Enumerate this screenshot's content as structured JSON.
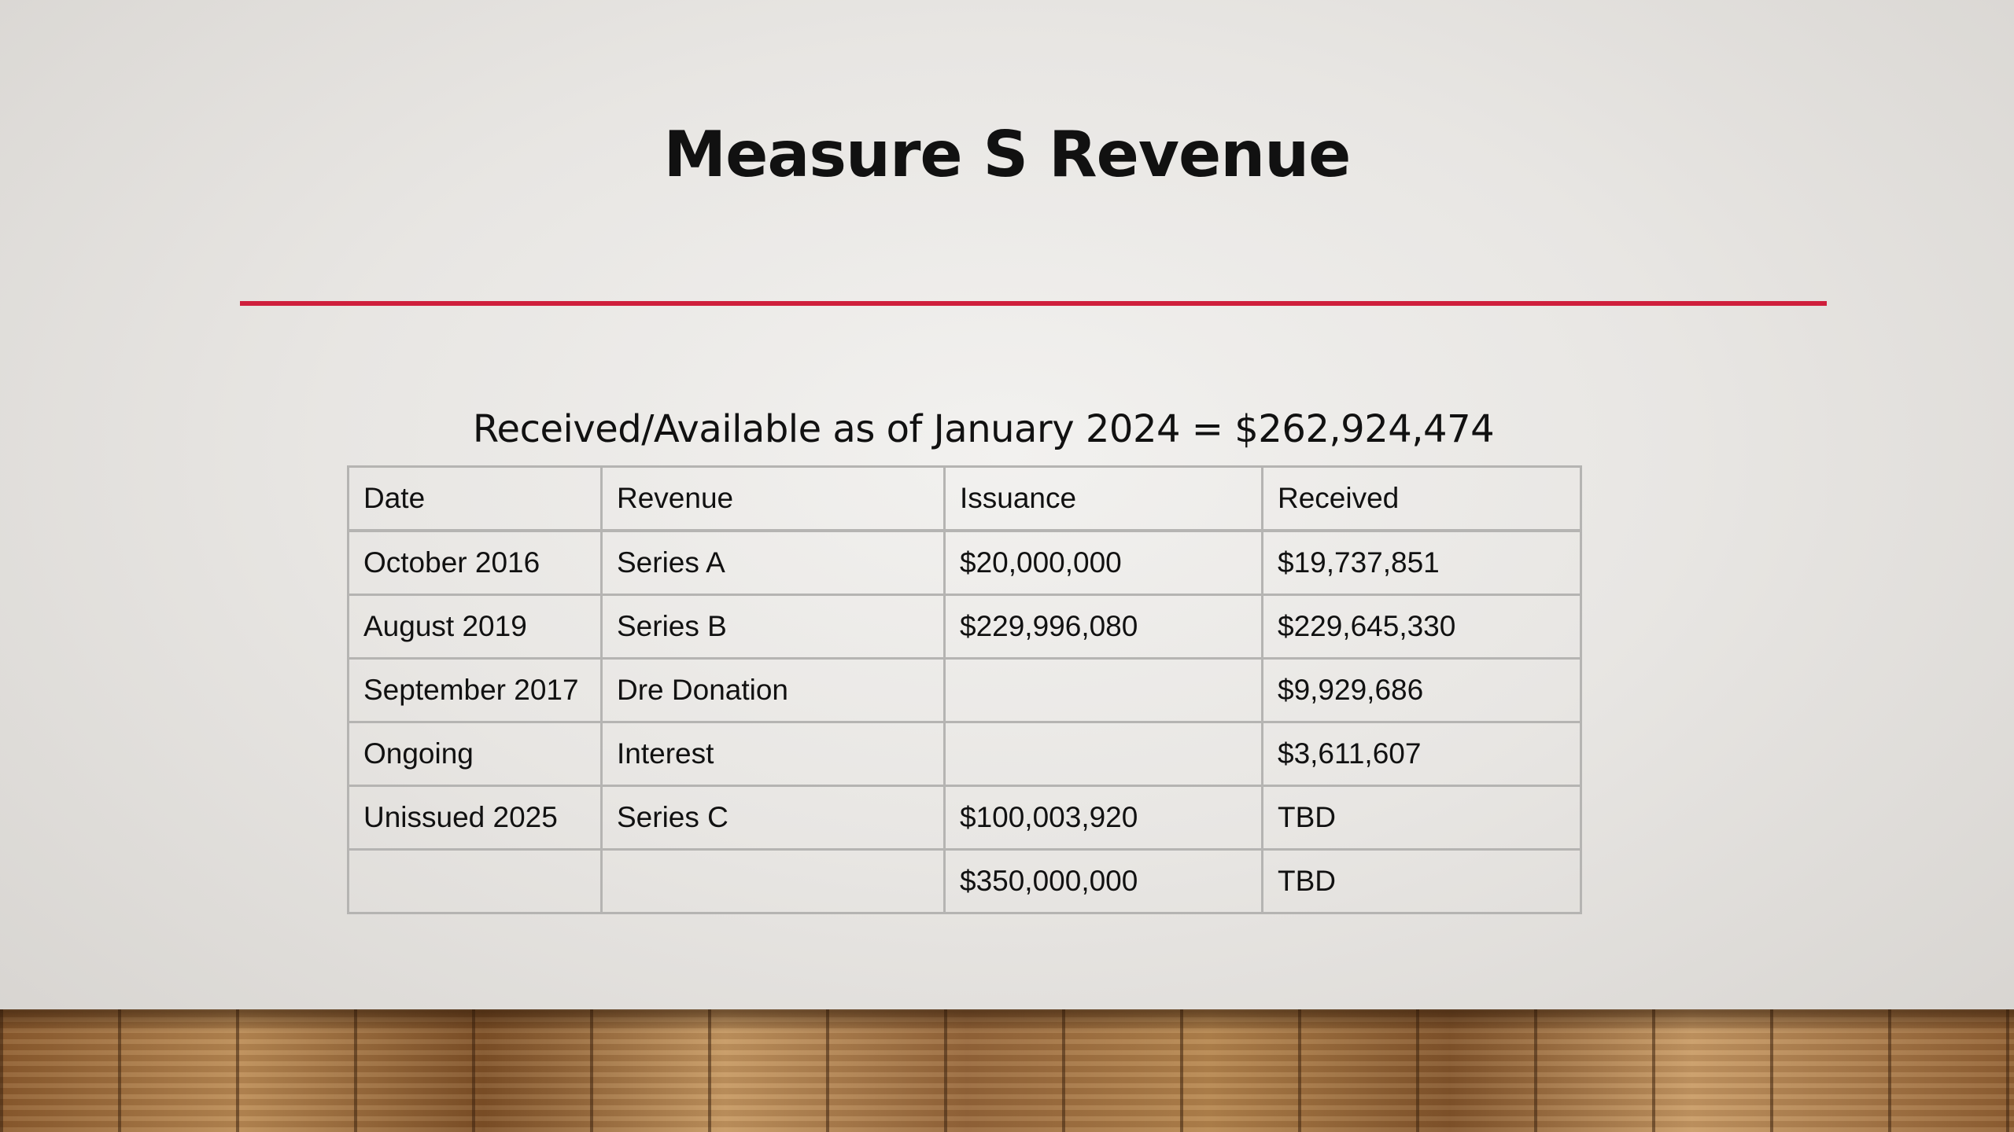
{
  "slide": {
    "title": "Measure S Revenue",
    "subtitle": "Received/Available as of January 2024 = $262,924,474"
  },
  "table": {
    "headers": [
      "Date",
      "Revenue",
      "Issuance",
      "Received"
    ],
    "rows": [
      [
        "October 2016",
        "Series A",
        "$20,000,000",
        "$19,737,851"
      ],
      [
        "August 2019",
        "Series B",
        "$229,996,080",
        "$229,645,330"
      ],
      [
        "September 2017",
        "Dre Donation",
        "",
        "$9,929,686"
      ],
      [
        "Ongoing",
        "Interest",
        "",
        "$3,611,607"
      ],
      [
        "Unissued 2025",
        "Series C",
        "$100,003,920",
        "TBD"
      ],
      [
        "",
        "",
        "$350,000,000",
        "TBD"
      ]
    ]
  },
  "colors": {
    "accent_rule": "#cf1f3c",
    "text": "#111111",
    "table_border": "#b5b4b2"
  }
}
